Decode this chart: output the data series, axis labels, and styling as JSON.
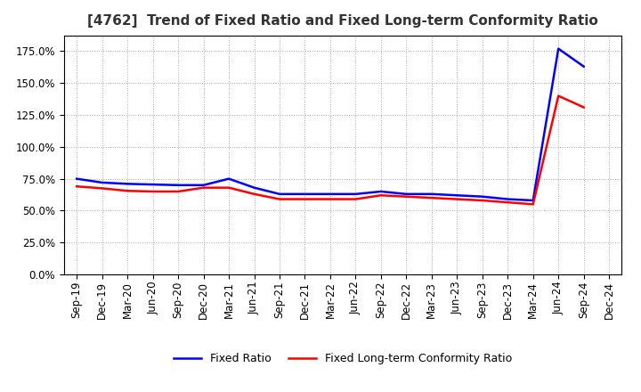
{
  "title": "[4762]  Trend of Fixed Ratio and Fixed Long-term Conformity Ratio",
  "x_labels": [
    "Sep-19",
    "Dec-19",
    "Mar-20",
    "Jun-20",
    "Sep-20",
    "Dec-20",
    "Mar-21",
    "Jun-21",
    "Sep-21",
    "Dec-21",
    "Mar-22",
    "Jun-22",
    "Sep-22",
    "Dec-22",
    "Mar-23",
    "Jun-23",
    "Sep-23",
    "Dec-23",
    "Mar-24",
    "Jun-24",
    "Sep-24",
    "Dec-24"
  ],
  "fixed_ratio": [
    75.0,
    72.0,
    71.0,
    70.5,
    70.0,
    70.0,
    75.0,
    68.0,
    63.0,
    63.0,
    63.0,
    63.0,
    65.0,
    63.0,
    63.0,
    62.0,
    61.0,
    59.0,
    58.0,
    177.0,
    163.0,
    null
  ],
  "fixed_lt_ratio": [
    69.0,
    67.5,
    65.5,
    65.0,
    65.0,
    68.0,
    68.0,
    63.0,
    59.0,
    59.0,
    59.0,
    59.0,
    62.0,
    61.0,
    60.0,
    59.0,
    58.0,
    56.5,
    55.0,
    140.0,
    131.0,
    null
  ],
  "ylim": [
    0,
    187.5
  ],
  "yticks": [
    0.0,
    25.0,
    50.0,
    75.0,
    100.0,
    125.0,
    150.0,
    175.0
  ],
  "legend_labels": [
    "Fixed Ratio",
    "Fixed Long-term Conformity Ratio"
  ],
  "line_colors": [
    "#0000FF",
    "#FF0000"
  ],
  "background_color": "#FFFFFF",
  "plot_bg_color": "#FFFFFF",
  "title_fontsize": 11,
  "grid_color": "#aaaaaa",
  "tick_fontsize": 8.5
}
